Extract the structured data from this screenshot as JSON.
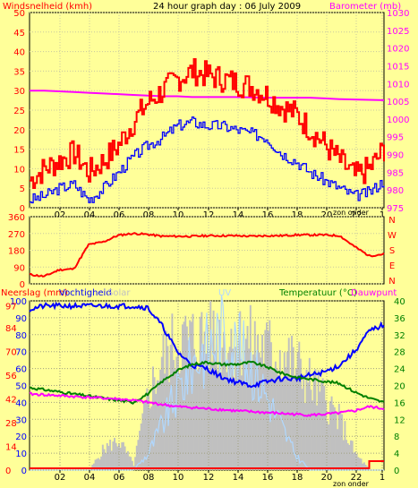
{
  "header": {
    "left": "Windsnelheid (kmh)",
    "center": "24 hour graph day : 06 July 2009",
    "right": "Barometer (mb)"
  },
  "x_ticks": [
    "02",
    "04",
    "06",
    "08",
    "10",
    "12",
    "14",
    "16",
    "18",
    "20",
    "22",
    "1"
  ],
  "zon_onder": "zon onder",
  "colors": {
    "bg": "#FFFF99",
    "wind": "#FF0000",
    "windavg": "#0000FF",
    "baro": "#FF00FF",
    "dir": "#FF0000",
    "temp": "#008000",
    "dew": "#FF00FF",
    "hum": "#0000FF",
    "solar": "#C0C0C0",
    "uv": "#B0D8FF",
    "rain": "#FF0000"
  },
  "chart_data": [
    {
      "type": "line",
      "yleft_ticks": [
        "50",
        "45",
        "40",
        "35",
        "30",
        "25",
        "20",
        "15",
        "10",
        "5",
        "0"
      ],
      "yright_ticks": [
        "1030",
        "1025",
        "1020",
        "1015",
        "1010",
        "1005",
        "1000",
        "995",
        "990",
        "985",
        "980",
        "975"
      ],
      "ylim_left": [
        0,
        50
      ],
      "ylim_right": [
        975,
        1030
      ],
      "x_hours_from_midnight": [
        0,
        1,
        2,
        3,
        4,
        5,
        6,
        7,
        8,
        9,
        10,
        11,
        12,
        13,
        14,
        15,
        16,
        17,
        18,
        19,
        20,
        21,
        22,
        23,
        24
      ],
      "series": [
        {
          "name": "Windsnelheid (kmh)",
          "axis": "left",
          "values": [
            7,
            10,
            12,
            14,
            9,
            12,
            16,
            22,
            27,
            30,
            33,
            35,
            34,
            33,
            32,
            31,
            29,
            26,
            24,
            20,
            16,
            12,
            8,
            10,
            15
          ]
        },
        {
          "name": "",
          "axis": "left",
          "values": [
            2,
            3,
            5,
            6,
            2,
            5,
            9,
            13,
            16,
            18,
            21,
            22,
            21,
            21,
            20,
            19,
            18,
            14,
            12,
            9,
            7,
            5,
            3,
            4,
            7
          ]
        },
        {
          "name": "Barometer (mb)",
          "axis": "right",
          "values": [
            1008,
            1008,
            1007.8,
            1007.6,
            1007.4,
            1007.2,
            1007,
            1006.8,
            1006.6,
            1006.4,
            1006.4,
            1006.2,
            1006.2,
            1006.2,
            1006.2,
            1006.1,
            1006,
            1006,
            1006,
            1006,
            1005.8,
            1005.6,
            1005.5,
            1005.4,
            1005.3
          ]
        }
      ]
    },
    {
      "type": "line",
      "y_ticks": [
        "360",
        "270",
        "180",
        "90",
        "0"
      ],
      "ylim": [
        0,
        360
      ],
      "direction_labels": [
        "N",
        "W",
        "S",
        "E",
        "N"
      ],
      "x_hours_from_midnight": [
        0,
        1,
        2,
        3,
        4,
        5,
        6,
        7,
        8,
        9,
        10,
        11,
        12,
        13,
        14,
        15,
        16,
        17,
        18,
        19,
        20,
        21,
        22,
        23,
        24
      ],
      "series": [
        {
          "name": "",
          "values": [
            50,
            40,
            75,
            80,
            210,
            225,
            260,
            270,
            265,
            255,
            255,
            255,
            258,
            258,
            258,
            255,
            258,
            258,
            262,
            262,
            262,
            258,
            200,
            150,
            160
          ]
        }
      ]
    },
    {
      "type": "line",
      "legend": [
        "Neerslag (mm)",
        "Vochtigheid",
        "Solar",
        "UV",
        "Temperatuur (°C)",
        "Dauwpunt"
      ],
      "y_ticks_left1": [
        "100",
        "90",
        "80",
        "70",
        "60",
        "50",
        "40",
        "30",
        "20",
        "10",
        "0"
      ],
      "y_ticks_left2": [
        "97",
        "84",
        "70",
        "56",
        "42",
        "28",
        "14",
        "0"
      ],
      "y_ticks_right": [
        "40",
        "36",
        "32",
        "28",
        "24",
        "20",
        "16",
        "12",
        "8",
        "4",
        "0"
      ],
      "ylim_humidity": [
        0,
        100
      ],
      "ylim_temperature": [
        0,
        40
      ],
      "x_hours_from_midnight": [
        0,
        1,
        2,
        3,
        4,
        5,
        6,
        7,
        8,
        9,
        10,
        11,
        12,
        13,
        14,
        15,
        16,
        17,
        18,
        19,
        20,
        21,
        22,
        23,
        24
      ],
      "series": [
        {
          "name": "Vochtigheid",
          "values": [
            95,
            97,
            97,
            97,
            97,
            97,
            97,
            97,
            96,
            85,
            70,
            62,
            60,
            55,
            52,
            50,
            52,
            54,
            54,
            56,
            58,
            62,
            70,
            82,
            86
          ]
        },
        {
          "name": "Temperatuur (°C)",
          "values": [
            19.5,
            19,
            18.5,
            18,
            17.5,
            17,
            16.5,
            16,
            18,
            21,
            23.5,
            25,
            25.5,
            25,
            25,
            25.5,
            24.5,
            23,
            22,
            21.5,
            21,
            20.5,
            18.5,
            17,
            16
          ]
        },
        {
          "name": "Dauwpunt",
          "values": [
            18,
            17.8,
            17.6,
            17.4,
            17.2,
            17,
            16.8,
            16.5,
            16,
            15.5,
            15,
            14.8,
            14.5,
            14.3,
            14,
            13.8,
            13.6,
            13.4,
            13.2,
            13,
            13.2,
            13.5,
            14,
            15,
            14.5
          ]
        },
        {
          "name": "Solar",
          "values": [
            0,
            0,
            0,
            0,
            0,
            160,
            220,
            40,
            560,
            820,
            960,
            960,
            1000,
            970,
            960,
            940,
            900,
            860,
            780,
            640,
            520,
            360,
            120,
            0,
            0
          ]
        },
        {
          "name": "UV",
          "values": [
            0,
            0,
            0,
            0,
            0,
            0,
            0,
            0,
            1,
            3,
            5,
            7,
            8,
            9,
            8,
            7,
            5,
            3,
            1,
            0,
            0,
            0,
            0,
            0,
            0
          ]
        },
        {
          "name": "Neerslag (mm)",
          "values": [
            0,
            0,
            0,
            0,
            0,
            0,
            0,
            0,
            0,
            0,
            0,
            0,
            0,
            0,
            0,
            0,
            0,
            0,
            0,
            0,
            0,
            0,
            0,
            2,
            2
          ]
        }
      ]
    }
  ]
}
